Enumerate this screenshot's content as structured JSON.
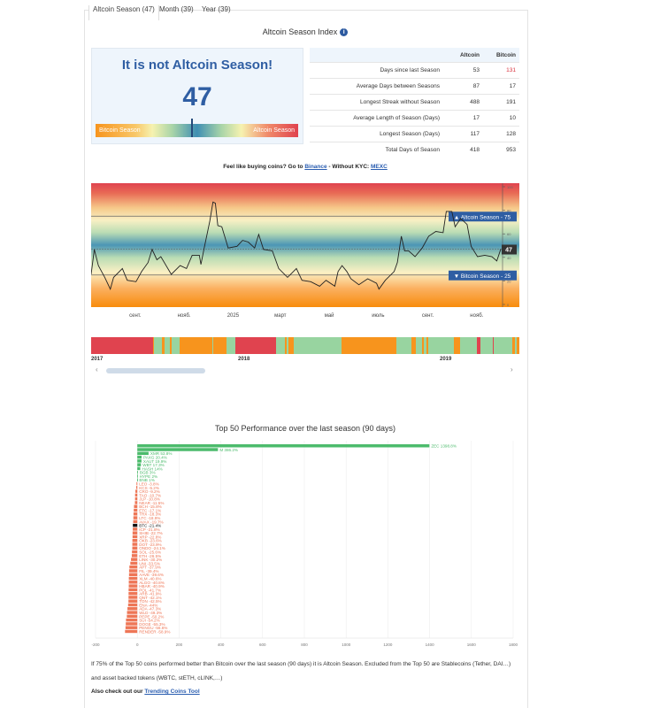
{
  "tabs": [
    {
      "label": "Altcoin Season (47)",
      "active": true
    },
    {
      "label": "Month (39)"
    },
    {
      "label": "Year (39)"
    }
  ],
  "title": "Altcoin Season Index",
  "gauge": {
    "message": "It is not Altcoin Season!",
    "value": 47,
    "left_label": "Bitcoin Season",
    "right_label": "Altcoin Season"
  },
  "stats": {
    "headers": [
      "",
      "Altcoin",
      "Bitcoin"
    ],
    "rows": [
      [
        "Days since last Season",
        "53",
        "131"
      ],
      [
        "Average Days between Seasons",
        "87",
        "17"
      ],
      [
        "Longest Streak without Season",
        "488",
        "191"
      ],
      [
        "Average Length of Season (Days)",
        "17",
        "10"
      ],
      [
        "Longest Season (Days)",
        "117",
        "128"
      ],
      [
        "Total Days of Season",
        "418",
        "953"
      ]
    ],
    "highlight_color": "#d9343f"
  },
  "buy": {
    "prefix": "Feel like buying coins? Go to ",
    "link1": "Binance",
    "middle": " - Without KYC: ",
    "link2": "MEXC"
  },
  "chart_data": [
    {
      "type": "line",
      "ylim": [
        0,
        100
      ],
      "yticks": [
        0,
        20,
        40,
        60,
        80,
        100
      ],
      "xticks": [
        [
          "2024-09-01",
          "сент."
        ],
        [
          "2024-11-01",
          "нояб."
        ],
        [
          "2025-01-01",
          "2025"
        ],
        [
          "2025-03-01",
          "март"
        ],
        [
          "2025-05-01",
          "май"
        ],
        [
          "2025-07-01",
          "июль"
        ],
        [
          "2025-09-01",
          "сент."
        ],
        [
          "2025-11-01",
          "нояб."
        ]
      ],
      "xlim": [
        "2024-07-08",
        "2025-12-01"
      ],
      "thresholds": [
        {
          "label": "▲ Altcoin Season - 75",
          "value": 75
        },
        {
          "label": "▼ Bitcoin Season - 25",
          "value": 25
        }
      ],
      "current_label": "47",
      "points": [
        [
          "2024-07-08",
          25.6
        ],
        [
          "2024-07-12",
          46.8
        ],
        [
          "2024-07-17",
          33
        ],
        [
          "2024-07-25",
          23
        ],
        [
          "2024-08-01",
          13
        ],
        [
          "2024-08-05",
          23
        ],
        [
          "2024-08-16",
          30.5
        ],
        [
          "2024-08-22",
          20.5
        ],
        [
          "2024-09-02",
          19.3
        ],
        [
          "2024-09-09",
          28
        ],
        [
          "2024-09-17",
          35.6
        ],
        [
          "2024-09-22",
          46.8
        ],
        [
          "2024-09-28",
          38
        ],
        [
          "2024-10-03",
          40.6
        ],
        [
          "2024-10-16",
          25.6
        ],
        [
          "2024-10-27",
          33
        ],
        [
          "2024-11-04",
          30.5
        ],
        [
          "2024-11-11",
          41.8
        ],
        [
          "2024-11-20",
          41.8
        ],
        [
          "2024-11-22",
          34
        ],
        [
          "2024-11-26",
          48
        ],
        [
          "2024-12-03",
          70.7
        ],
        [
          "2024-12-07",
          87
        ],
        [
          "2024-12-10",
          86
        ],
        [
          "2024-12-13",
          67
        ],
        [
          "2024-12-18",
          66
        ],
        [
          "2024-12-26",
          48
        ],
        [
          "2025-01-06",
          49.4
        ],
        [
          "2025-01-13",
          54.4
        ],
        [
          "2025-01-20",
          53
        ],
        [
          "2025-01-28",
          48
        ],
        [
          "2025-02-02",
          59.5
        ],
        [
          "2025-02-08",
          46.8
        ],
        [
          "2025-02-19",
          45.6
        ],
        [
          "2025-02-27",
          30.5
        ],
        [
          "2025-03-10",
          23
        ],
        [
          "2025-03-21",
          30.5
        ],
        [
          "2025-03-28",
          20.5
        ],
        [
          "2025-04-08",
          19.3
        ],
        [
          "2025-04-19",
          15.5
        ],
        [
          "2025-04-27",
          20.5
        ],
        [
          "2025-05-08",
          15.5
        ],
        [
          "2025-05-12",
          28
        ],
        [
          "2025-05-17",
          33
        ],
        [
          "2025-05-23",
          28
        ],
        [
          "2025-05-28",
          21.8
        ],
        [
          "2025-06-07",
          16.8
        ],
        [
          "2025-06-18",
          21.8
        ],
        [
          "2025-06-29",
          18
        ],
        [
          "2025-07-02",
          13
        ],
        [
          "2025-07-10",
          20.5
        ],
        [
          "2025-07-21",
          28
        ],
        [
          "2025-07-25",
          35.6
        ],
        [
          "2025-07-30",
          58
        ],
        [
          "2025-08-03",
          45.6
        ],
        [
          "2025-08-08",
          45.6
        ],
        [
          "2025-08-16",
          40.6
        ],
        [
          "2025-08-25",
          48
        ],
        [
          "2025-09-02",
          58
        ],
        [
          "2025-09-11",
          62
        ],
        [
          "2025-09-20",
          61
        ],
        [
          "2025-09-24",
          79
        ],
        [
          "2025-10-01",
          79
        ],
        [
          "2025-10-05",
          66
        ],
        [
          "2025-10-12",
          73
        ],
        [
          "2025-10-20",
          68
        ],
        [
          "2025-10-25",
          49.4
        ],
        [
          "2025-11-02",
          40.6
        ],
        [
          "2025-11-11",
          41.8
        ],
        [
          "2025-11-20",
          40.6
        ],
        [
          "2025-11-26",
          37
        ],
        [
          "2025-12-01",
          47
        ]
      ]
    },
    {
      "type": "season-strip",
      "years": [
        "2017",
        "2018",
        "2019"
      ],
      "colors": {
        "altcoin": "#e0434f",
        "bitcoin": "#f7941d",
        "neutral": "#98d4a0"
      },
      "segments": [
        [
          "altcoin",
          72
        ],
        [
          "bitcoin",
          1
        ],
        [
          "neutral",
          10
        ],
        [
          "bitcoin",
          3
        ],
        [
          "neutral",
          6
        ],
        [
          "bitcoin",
          2
        ],
        [
          "neutral",
          9
        ],
        [
          "bitcoin",
          38
        ],
        [
          "neutral",
          1
        ],
        [
          "bitcoin",
          16
        ],
        [
          "neutral",
          10
        ],
        [
          "altcoin",
          48
        ],
        [
          "neutral",
          10
        ],
        [
          "bitcoin",
          2
        ],
        [
          "neutral",
          2
        ],
        [
          "bitcoin",
          6
        ],
        [
          "neutral",
          56
        ],
        [
          "bitcoin",
          64
        ],
        [
          "neutral",
          17
        ],
        [
          "bitcoin",
          5
        ],
        [
          "neutral",
          8
        ],
        [
          "bitcoin",
          2
        ],
        [
          "neutral",
          3
        ],
        [
          "bitcoin",
          2
        ],
        [
          "neutral",
          30
        ],
        [
          "bitcoin",
          7
        ],
        [
          "neutral",
          20
        ],
        [
          "altcoin",
          4
        ],
        [
          "neutral",
          14
        ],
        [
          "altcoin",
          1
        ],
        [
          "neutral",
          22
        ],
        [
          "bitcoin",
          3
        ],
        [
          "neutral",
          2
        ],
        [
          "bitcoin",
          3
        ]
      ]
    },
    {
      "type": "bar",
      "title": "Top 50 Performance over the last season (90 days)",
      "xlim": [
        -200,
        1800
      ],
      "xticks": [
        -200,
        0,
        200,
        400,
        600,
        800,
        1000,
        1200,
        1400,
        1600,
        1800
      ],
      "colors": {
        "positive": "#4cbb6c",
        "negative": "#ee7656",
        "bitcoin": "#111111"
      },
      "bars": [
        [
          "ZEC",
          1398.8
        ],
        [
          "M",
          386.2
        ],
        [
          "XMR",
          53.8
        ],
        [
          "PAXG",
          20.4
        ],
        [
          "XAUT",
          19.9
        ],
        [
          "WBT",
          17.3
        ],
        [
          "HASH",
          14.0
        ],
        [
          "BGB",
          3.0
        ],
        [
          "HYPE",
          2.0
        ],
        [
          "BNB",
          1.0
        ],
        [
          "LEO",
          -3.8
        ],
        [
          "KCS",
          -5.2
        ],
        [
          "CRO",
          -9.2
        ],
        [
          "TAO",
          -10.7
        ],
        [
          "JLP",
          -10.8
        ],
        [
          "NEAR",
          -11.5
        ],
        [
          "BCH",
          -15.8
        ],
        [
          "ETC",
          -17.1
        ],
        [
          "TRX",
          -18.3
        ],
        [
          "LTC",
          -18.9
        ],
        [
          "AVAX",
          -19.7
        ],
        [
          "BTC",
          -21.4
        ],
        [
          "ICP",
          -21.8
        ],
        [
          "SHIB",
          -22.7
        ],
        [
          "XRP",
          -22.8
        ],
        [
          "OKB",
          -23.6
        ],
        [
          "DOT",
          -23.9
        ],
        [
          "ONDO",
          -24.1
        ],
        [
          "SOL",
          -25.6
        ],
        [
          "ETH",
          -26.5
        ],
        [
          "LINK",
          -30.2
        ],
        [
          "UNI",
          -33.5
        ],
        [
          "APT",
          -37.9
        ],
        [
          "FIL",
          -39.4
        ],
        [
          "AAVE",
          -39.6
        ],
        [
          "XLM",
          -40.6
        ],
        [
          "ALGO",
          -40.8
        ],
        [
          "HBAR",
          -40.9
        ],
        [
          "POL",
          -41.7
        ],
        [
          "ARB",
          -41.9
        ],
        [
          "QNT",
          -42.1
        ],
        [
          "TON",
          -42.5
        ],
        [
          "ENA",
          -44.0
        ],
        [
          "ADA",
          -47.3
        ],
        [
          "WLD",
          -49.3
        ],
        [
          "PEPE",
          -50.2
        ],
        [
          "SUI",
          -54.2
        ],
        [
          "DOGE",
          -55.3
        ],
        [
          "PENGU",
          -56.6
        ],
        [
          "RENDER",
          -58.9
        ]
      ]
    }
  ],
  "footer": {
    "text1": "If 75% of the Top 50 coins performed better than Bitcoin over the last season (90 days) it is Altcoin Season. Excluded from the Top 50 are Stablecoins (Tether, DAI…) and asset backed tokens (WBTC, stETH, cLINK,…)",
    "also_prefix": "Also check out our ",
    "also_link": "Trending Coins Tool"
  }
}
